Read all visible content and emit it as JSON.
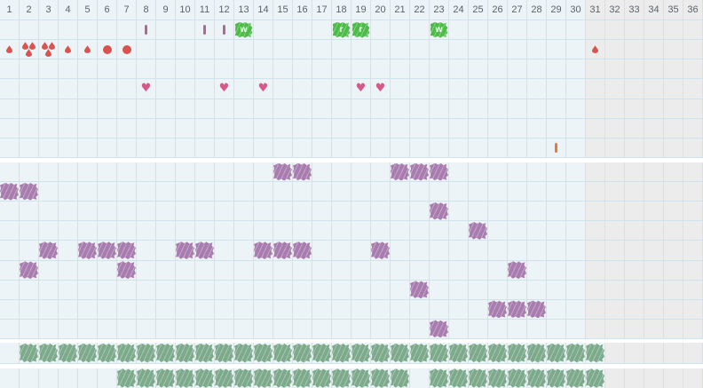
{
  "grid": {
    "column_labels": [
      "1",
      "2",
      "3",
      "4",
      "5",
      "6",
      "7",
      "8",
      "9",
      "10",
      "11",
      "12",
      "13",
      "14",
      "15",
      "16",
      "17",
      "18",
      "19",
      "20",
      "21",
      "22",
      "23",
      "24",
      "25",
      "26",
      "27",
      "28",
      "29",
      "30",
      "31",
      "32",
      "33",
      "34",
      "35",
      "36"
    ],
    "inactive_from_column": 31,
    "inactive_from_column_footer": 32
  },
  "colors": {
    "cell_bg": "#edf4f8",
    "cell_bg_inactive": "#ececed",
    "grid_line": "#cfe3ee",
    "header_text": "#59636d",
    "flow_red": "#d9534f",
    "heart_pink": "#d6598a",
    "tick_pink": "#ad6a93",
    "tick_orange": "#ee763d",
    "note_green": "#4cbb47",
    "scribble_purple": "#a87cae",
    "scribble_green": "#7caa8b"
  },
  "icons": {
    "heart_glyph": "♥"
  },
  "sections": {
    "top": {
      "rows": [
        {
          "name": "notes-row",
          "marks": [
            {
              "col": 8,
              "icon": "tick-pink"
            },
            {
              "col": 11,
              "icon": "tick-pink"
            },
            {
              "col": 12,
              "icon": "tick-pink"
            },
            {
              "col": 13,
              "icon": "note",
              "label": "w"
            },
            {
              "col": 18,
              "icon": "note",
              "label": "r"
            },
            {
              "col": 19,
              "icon": "note",
              "label": "r"
            },
            {
              "col": 23,
              "icon": "note",
              "label": "w"
            }
          ]
        },
        {
          "name": "flow-row",
          "marks": [
            {
              "col": 1,
              "icon": "drop-small"
            },
            {
              "col": 2,
              "icon": "drop-heavy"
            },
            {
              "col": 3,
              "icon": "drop-heavy"
            },
            {
              "col": 4,
              "icon": "drop-small"
            },
            {
              "col": 5,
              "icon": "drop-small"
            },
            {
              "col": 6,
              "icon": "dot"
            },
            {
              "col": 7,
              "icon": "dot"
            },
            {
              "col": 31,
              "icon": "drop-small"
            }
          ]
        },
        {
          "name": "empty-row-1",
          "marks": []
        },
        {
          "name": "intimacy-row",
          "marks": [
            {
              "col": 8,
              "icon": "heart"
            },
            {
              "col": 12,
              "icon": "heart"
            },
            {
              "col": 14,
              "icon": "heart"
            },
            {
              "col": 19,
              "icon": "heart"
            },
            {
              "col": 20,
              "icon": "heart"
            }
          ]
        },
        {
          "name": "empty-row-2",
          "marks": []
        },
        {
          "name": "empty-row-3",
          "marks": []
        },
        {
          "name": "extra-row",
          "marks": [
            {
              "col": 29,
              "icon": "tick-orange"
            }
          ]
        }
      ]
    },
    "middle": {
      "icon": "scribble-purple",
      "rows": [
        {
          "name": "symptom-row-1",
          "cols": [
            15,
            16,
            21,
            22,
            23
          ]
        },
        {
          "name": "symptom-row-2",
          "cols": [
            1,
            2
          ]
        },
        {
          "name": "symptom-row-3",
          "cols": [
            23
          ]
        },
        {
          "name": "symptom-row-4",
          "cols": [
            25
          ]
        },
        {
          "name": "symptom-row-5",
          "cols": [
            3,
            5,
            6,
            7,
            10,
            11,
            14,
            15,
            16,
            20
          ]
        },
        {
          "name": "symptom-row-6",
          "cols": [
            2,
            7,
            27
          ]
        },
        {
          "name": "symptom-row-7",
          "cols": [
            22
          ]
        },
        {
          "name": "symptom-row-8",
          "cols": [
            26,
            27,
            28
          ]
        },
        {
          "name": "symptom-row-9",
          "cols": [
            23
          ]
        }
      ]
    },
    "footer": {
      "icon": "scribble-green",
      "rows": [
        {
          "name": "daily-row-1",
          "cols": [
            2,
            3,
            4,
            5,
            6,
            7,
            8,
            9,
            10,
            11,
            12,
            13,
            14,
            15,
            16,
            17,
            18,
            19,
            20,
            21,
            22,
            23,
            24,
            25,
            26,
            27,
            28,
            29,
            30,
            31
          ]
        },
        {
          "name": "daily-row-2",
          "cols": [
            7,
            8,
            9,
            10,
            11,
            12,
            13,
            14,
            15,
            16,
            17,
            18,
            19,
            20,
            21,
            23,
            24,
            25,
            26,
            27,
            28,
            29,
            30,
            31
          ]
        }
      ]
    }
  }
}
